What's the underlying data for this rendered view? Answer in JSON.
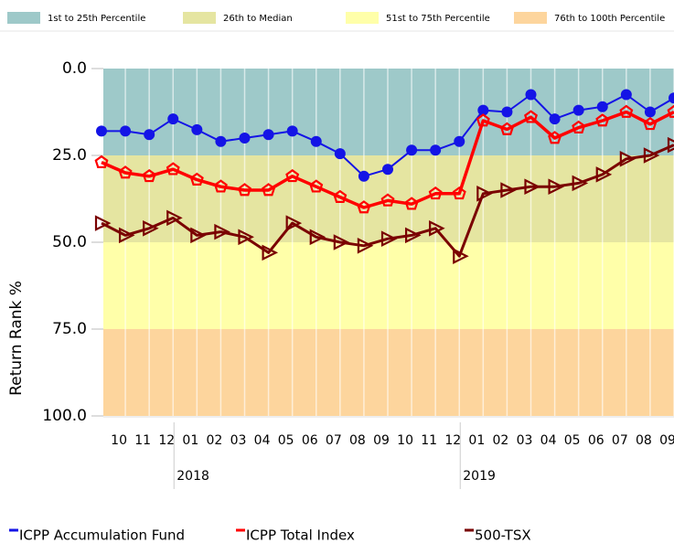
{
  "chart_data": {
    "type": "line",
    "y_label": "Return Rank %",
    "categories": [
      null,
      "10",
      "11",
      "12",
      "01",
      "02",
      "03",
      "04",
      "05",
      "06",
      "07",
      "08",
      "09",
      "10",
      "11",
      "12",
      "01",
      "02",
      "03",
      "04",
      "05",
      "06",
      "07",
      "08",
      "09"
    ],
    "x_groups": [
      "2018",
      "2019"
    ],
    "ylim": [
      0,
      100
    ],
    "y_inverted": true,
    "yticks": [
      {
        "value": 0,
        "label": "0.0"
      },
      {
        "value": 25,
        "label": "25.0"
      },
      {
        "value": 50,
        "label": "50.0"
      },
      {
        "value": 75,
        "label": "75.0"
      },
      {
        "value": 100,
        "label": "100.0"
      }
    ],
    "bands": [
      {
        "name": "1st to 25th Percentile",
        "color": "#9ec9c9",
        "from": 0,
        "to": 25
      },
      {
        "name": "26th to Median",
        "color": "#e5e5a1",
        "from": 25,
        "to": 50
      },
      {
        "name": "51st to 75th Percentile",
        "color": "#ffffa9",
        "from": 50,
        "to": 75
      },
      {
        "name": "76th to 100th Percentile",
        "color": "#fdd59d",
        "from": 75,
        "to": 100
      }
    ],
    "series": [
      {
        "name": "ICPP Accumulation Fund",
        "color": "#1414e6",
        "marker": "circle",
        "width": 2,
        "values": [
          18,
          18,
          19,
          14.5,
          17.6,
          21,
          20,
          19,
          18,
          21,
          24.5,
          31,
          29,
          23.5,
          23.5,
          21,
          12,
          12.5,
          7.5,
          14.5,
          12,
          11,
          7.5,
          12.5,
          8.5
        ]
      },
      {
        "name": "ICPP Total Index",
        "color": "#ff0000",
        "marker": "pentagon",
        "width": 3.5,
        "values": [
          27,
          30,
          31,
          29,
          32,
          34,
          35,
          35,
          31,
          34,
          37,
          40,
          38,
          39,
          36,
          36,
          15,
          17.5,
          14,
          20,
          17,
          15,
          12.5,
          16,
          12.5
        ]
      },
      {
        "name": "500-TSX",
        "color": "#7a0000",
        "marker": "triangle-right",
        "width": 3,
        "values": [
          44.5,
          48,
          46,
          43,
          48,
          47,
          48.5,
          53,
          44.5,
          48.5,
          50,
          51,
          49,
          48,
          46,
          54,
          36,
          35,
          34,
          34,
          33,
          30.5,
          26,
          25,
          22
        ]
      }
    ]
  }
}
